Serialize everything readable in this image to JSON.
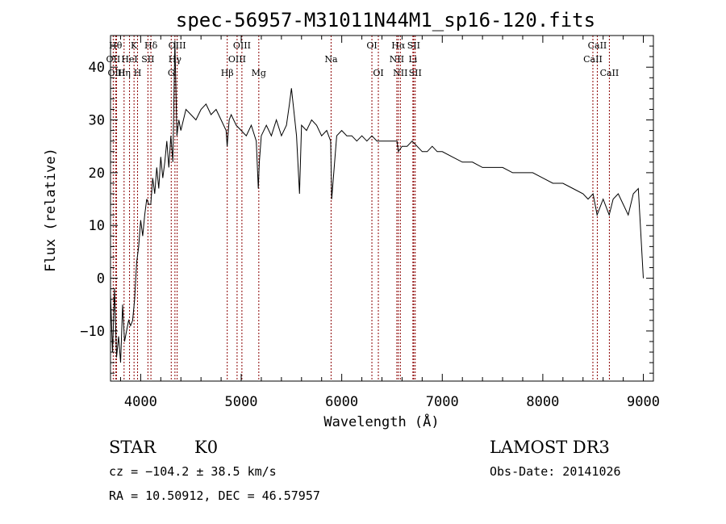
{
  "chart_data": {
    "type": "line",
    "title": "spec-56957-M31011N44M1_sp16-120.fits",
    "xlabel": "Wavelength (Å)",
    "ylabel": "Flux (relative)",
    "xlim": [
      3700,
      9100
    ],
    "ylim": [
      -19.5,
      46
    ],
    "xticks": [
      4000,
      5000,
      6000,
      7000,
      8000,
      9000
    ],
    "yticks": [
      -10,
      0,
      10,
      20,
      30,
      40
    ],
    "grid": false,
    "line_color": "#000000",
    "marker_color": "#8b0000",
    "series": [
      {
        "x": [
          3700,
          3720,
          3740,
          3760,
          3780,
          3800,
          3820,
          3840,
          3860,
          3880,
          3900,
          3920,
          3940,
          3960,
          3980,
          4000,
          4020,
          4040,
          4060,
          4080,
          4100,
          4120,
          4140,
          4160,
          4180,
          4200,
          4220,
          4240,
          4260,
          4280,
          4300,
          4320,
          4340,
          4360,
          4380,
          4400,
          4450,
          4500,
          4550,
          4600,
          4650,
          4700,
          4750,
          4800,
          4850,
          4860,
          4880,
          4900,
          4950,
          5000,
          5050,
          5100,
          5150,
          5170,
          5180,
          5200,
          5250,
          5300,
          5350,
          5400,
          5450,
          5480,
          5500,
          5550,
          5580,
          5600,
          5650,
          5700,
          5750,
          5800,
          5850,
          5890,
          5900,
          5950,
          6000,
          6050,
          6100,
          6150,
          6200,
          6250,
          6300,
          6350,
          6400,
          6450,
          6500,
          6550,
          6563,
          6600,
          6650,
          6700,
          6750,
          6800,
          6850,
          6900,
          6950,
          7000,
          7100,
          7200,
          7300,
          7400,
          7500,
          7600,
          7700,
          7800,
          7900,
          8000,
          8100,
          8200,
          8300,
          8400,
          8450,
          8500,
          8540,
          8600,
          8660,
          8700,
          8750,
          8800,
          8850,
          8900,
          8950,
          9000
        ],
        "y": [
          -3,
          -14,
          -2,
          -15,
          -11,
          -16,
          -5,
          -12,
          -10,
          -8,
          -9,
          -8,
          -4,
          3,
          6,
          11,
          8,
          12,
          15,
          14,
          14,
          19,
          16,
          21,
          17,
          23,
          19,
          22,
          26,
          21,
          27,
          22,
          45,
          27,
          30,
          28,
          32,
          31,
          30,
          32,
          33,
          31,
          32,
          30,
          28,
          25,
          30,
          31,
          29,
          28,
          27,
          29,
          26,
          17,
          22,
          27,
          29,
          27,
          30,
          27,
          29,
          33,
          36,
          27,
          16,
          29,
          28,
          30,
          29,
          27,
          28,
          26,
          15,
          27,
          28,
          27,
          27,
          26,
          27,
          26,
          27,
          26,
          26,
          26,
          26,
          26,
          24,
          25,
          25,
          26,
          25,
          24,
          24,
          25,
          24,
          24,
          23,
          22,
          22,
          21,
          21,
          21,
          20,
          20,
          20,
          19,
          18,
          18,
          17,
          16,
          15,
          16,
          12,
          15,
          12,
          15,
          16,
          14,
          12,
          16,
          17,
          0
        ],
        "values": [
          -3,
          -14,
          -2,
          -15,
          -11,
          -16,
          -5,
          -12,
          -10,
          -8,
          -9,
          -8,
          -4,
          3,
          6,
          11,
          8,
          12,
          15,
          14,
          14,
          19,
          16,
          21,
          17,
          23,
          19,
          22,
          26,
          21,
          27,
          22,
          45,
          27,
          30,
          28,
          32,
          31,
          30,
          32,
          33,
          31,
          32,
          30,
          28,
          25,
          30,
          31,
          29,
          28,
          27,
          29,
          26,
          17,
          22,
          27,
          29,
          27,
          30,
          27,
          29,
          33,
          36,
          27,
          16,
          29,
          28,
          30,
          29,
          27,
          28,
          26,
          15,
          27,
          28,
          27,
          27,
          26,
          27,
          26,
          27,
          26,
          26,
          26,
          26,
          26,
          24,
          25,
          25,
          26,
          25,
          24,
          24,
          25,
          24,
          24,
          23,
          22,
          22,
          21,
          21,
          21,
          20,
          20,
          20,
          19,
          18,
          18,
          17,
          16,
          15,
          16,
          12,
          15,
          12,
          15,
          16,
          14,
          12,
          16,
          17,
          0
        ]
      }
    ],
    "lines": [
      {
        "w": 3750,
        "label": "Hθ",
        "row": 0
      },
      {
        "w": 3727,
        "label": "OII",
        "row": 1
      },
      {
        "w": 3760,
        "label": "OIII",
        "row": 2
      },
      {
        "w": 3835,
        "label": "Hη",
        "row": 2
      },
      {
        "w": 3889,
        "label": "HeI",
        "row": 1
      },
      {
        "w": 3934,
        "label": "K",
        "row": 0
      },
      {
        "w": 3969,
        "label": "H",
        "row": 2
      },
      {
        "w": 4072,
        "label": "SII",
        "row": 1
      },
      {
        "w": 4102,
        "label": "Hδ",
        "row": 0
      },
      {
        "w": 4304,
        "label": "G",
        "row": 2
      },
      {
        "w": 4341,
        "label": "Hγ",
        "row": 1
      },
      {
        "w": 4363,
        "label": "OIII",
        "row": 0
      },
      {
        "w": 4861,
        "label": "Hβ",
        "row": 2
      },
      {
        "w": 4959,
        "label": "OIII",
        "row": 1
      },
      {
        "w": 5007,
        "label": "OIII",
        "row": 0
      },
      {
        "w": 5175,
        "label": "Mg",
        "row": 2
      },
      {
        "w": 5894,
        "label": "Na",
        "row": 1
      },
      {
        "w": 6300,
        "label": "OI",
        "row": 0
      },
      {
        "w": 6364,
        "label": "OI",
        "row": 2
      },
      {
        "w": 6548,
        "label": "NII",
        "row": 1
      },
      {
        "w": 6563,
        "label": "Hα",
        "row": 0
      },
      {
        "w": 6583,
        "label": "NII",
        "row": 2
      },
      {
        "w": 6708,
        "label": "Li",
        "row": 1
      },
      {
        "w": 6716,
        "label": "SII",
        "row": 0
      },
      {
        "w": 6731,
        "label": "SII",
        "row": 2
      },
      {
        "w": 8498,
        "label": "CaII",
        "row": 1
      },
      {
        "w": 8542,
        "label": "CaII",
        "row": 0
      },
      {
        "w": 8662,
        "label": "CaII",
        "row": 2
      }
    ]
  },
  "footer": {
    "class_label": "STAR",
    "subclass": "K0",
    "survey": "LAMOST DR3",
    "cz": "cz = −104.2 ± 38.5 km/s",
    "obs_date": "Obs-Date: 20141026",
    "coords": "RA =  10.50912, DEC =  46.57957"
  }
}
